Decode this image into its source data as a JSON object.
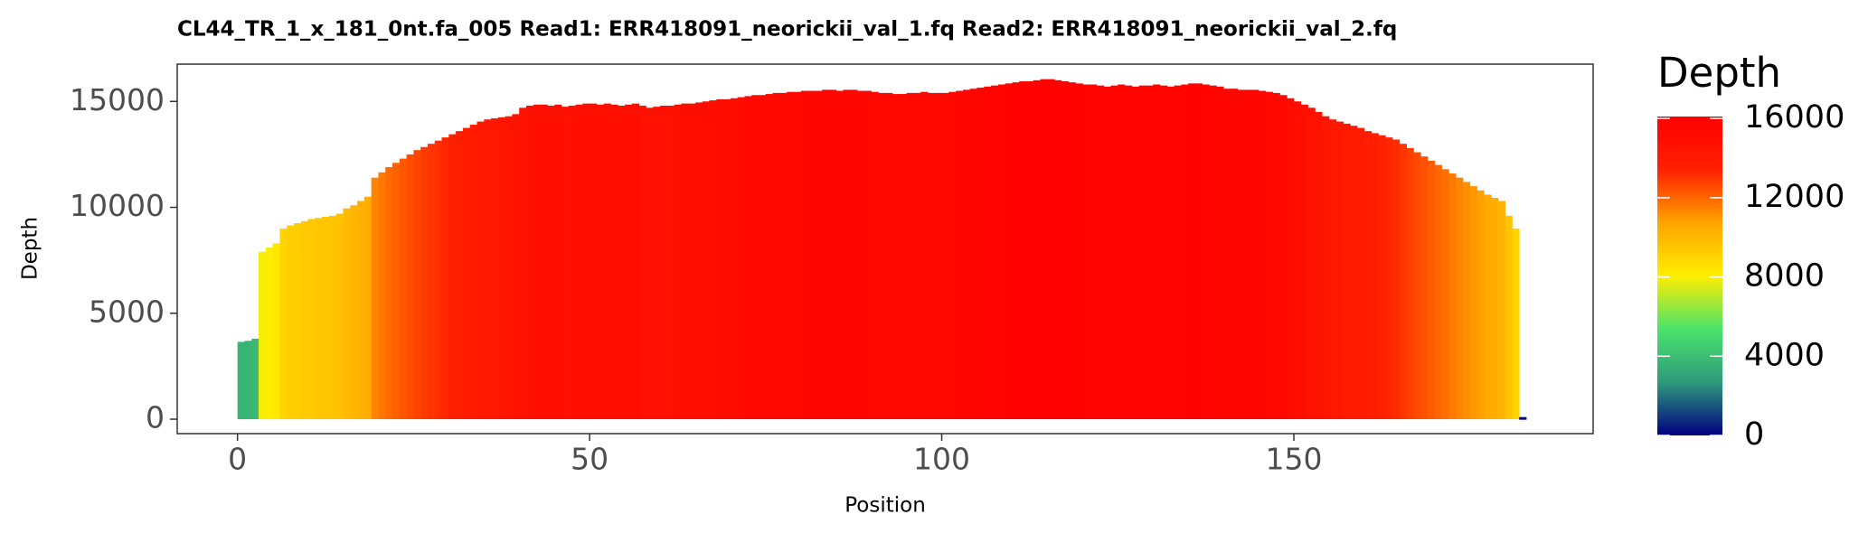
{
  "chart_data": {
    "type": "bar",
    "title": "CL44_TR_1_x_181_0nt.fa_005   Read1: ERR418091_neorickii_val_1.fq   Read2: ERR418091_neorickii_val_2.fq",
    "x_label": "Position",
    "y_label": "Depth",
    "x": [
      0,
      1,
      2,
      3,
      4,
      5,
      6,
      7,
      8,
      9,
      10,
      11,
      12,
      13,
      14,
      15,
      16,
      17,
      18,
      19,
      20,
      21,
      22,
      23,
      24,
      25,
      26,
      27,
      28,
      29,
      30,
      31,
      32,
      33,
      34,
      35,
      36,
      37,
      38,
      39,
      40,
      41,
      42,
      43,
      44,
      45,
      46,
      47,
      48,
      49,
      50,
      51,
      52,
      53,
      54,
      55,
      56,
      57,
      58,
      59,
      60,
      61,
      62,
      63,
      64,
      65,
      66,
      67,
      68,
      69,
      70,
      71,
      72,
      73,
      74,
      75,
      76,
      77,
      78,
      79,
      80,
      81,
      82,
      83,
      84,
      85,
      86,
      87,
      88,
      89,
      90,
      91,
      92,
      93,
      94,
      95,
      96,
      97,
      98,
      99,
      100,
      101,
      102,
      103,
      104,
      105,
      106,
      107,
      108,
      109,
      110,
      111,
      112,
      113,
      114,
      115,
      116,
      117,
      118,
      119,
      120,
      121,
      122,
      123,
      124,
      125,
      126,
      127,
      128,
      129,
      130,
      131,
      132,
      133,
      134,
      135,
      136,
      137,
      138,
      139,
      140,
      141,
      142,
      143,
      144,
      145,
      146,
      147,
      148,
      149,
      150,
      151,
      152,
      153,
      154,
      155,
      156,
      157,
      158,
      159,
      160,
      161,
      162,
      163,
      164,
      165,
      166,
      167,
      168,
      169,
      170,
      171,
      172,
      173,
      174,
      175,
      176,
      177,
      178,
      179,
      180,
      181,
      182
    ],
    "values": [
      3650,
      3700,
      3800,
      7900,
      8100,
      8300,
      9000,
      9150,
      9250,
      9350,
      9450,
      9500,
      9550,
      9600,
      9700,
      9950,
      10100,
      10300,
      10500,
      11400,
      11650,
      11900,
      12100,
      12300,
      12500,
      12700,
      12850,
      13000,
      13150,
      13300,
      13450,
      13600,
      13750,
      13900,
      14050,
      14150,
      14200,
      14250,
      14300,
      14400,
      14700,
      14800,
      14850,
      14850,
      14800,
      14850,
      14750,
      14800,
      14850,
      14900,
      14900,
      14850,
      14900,
      14850,
      14800,
      14850,
      14900,
      14800,
      14700,
      14750,
      14800,
      14800,
      14850,
      14900,
      14900,
      14950,
      15000,
      15050,
      15100,
      15100,
      15150,
      15200,
      15250,
      15300,
      15300,
      15350,
      15400,
      15400,
      15450,
      15450,
      15500,
      15500,
      15500,
      15550,
      15550,
      15500,
      15550,
      15550,
      15500,
      15500,
      15450,
      15400,
      15400,
      15350,
      15350,
      15400,
      15400,
      15450,
      15400,
      15400,
      15400,
      15450,
      15500,
      15550,
      15600,
      15650,
      15700,
      15750,
      15800,
      15850,
      15900,
      15950,
      15950,
      16000,
      16050,
      16050,
      16000,
      15950,
      15900,
      15850,
      15800,
      15800,
      15750,
      15700,
      15750,
      15800,
      15750,
      15700,
      15750,
      15750,
      15800,
      15750,
      15700,
      15750,
      15800,
      15850,
      15850,
      15800,
      15750,
      15700,
      15600,
      15600,
      15550,
      15550,
      15550,
      15500,
      15450,
      15400,
      15300,
      15150,
      15000,
      14850,
      14700,
      14500,
      14300,
      14150,
      14050,
      13950,
      13850,
      13750,
      13600,
      13500,
      13400,
      13300,
      13200,
      13000,
      12800,
      12600,
      12400,
      12200,
      12000,
      11800,
      11600,
      11400,
      11200,
      11000,
      10800,
      10600,
      10450,
      10300,
      9600,
      9000,
      100
    ],
    "xlim": [
      -8.56,
      192.5
    ],
    "xticks": [
      0,
      50,
      100,
      150
    ],
    "ylim": [
      -682,
      16760
    ],
    "yticks": [
      0,
      5000,
      10000,
      15000
    ],
    "legend_title": "Depth",
    "colorbar": {
      "lim": [
        0,
        16100
      ],
      "ticks": [
        0,
        4000,
        8000,
        12000,
        16000
      ],
      "colors": [
        "#000080",
        "#2e9a7a",
        "#4be36c",
        "#ffee00",
        "#ffa500",
        "#ff2000",
        "#ff0000"
      ]
    }
  }
}
